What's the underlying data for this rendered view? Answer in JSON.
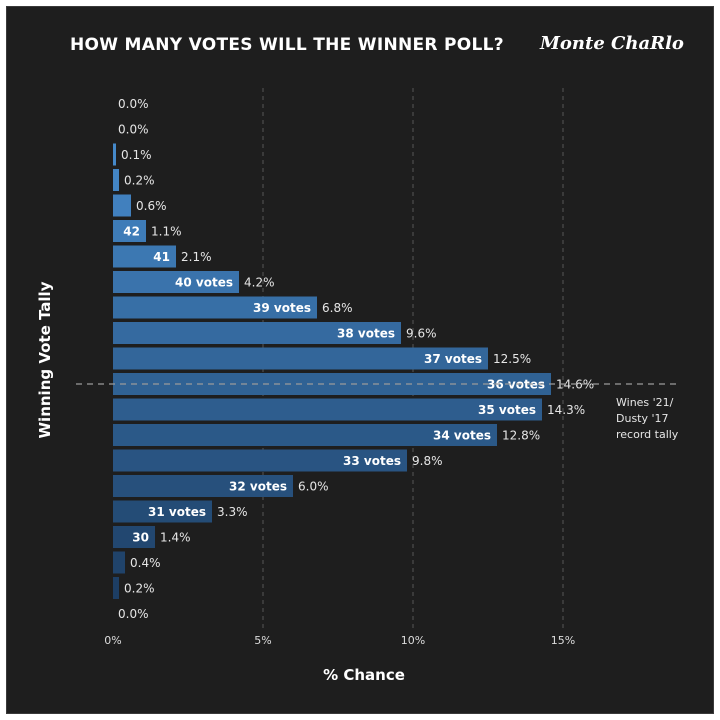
{
  "header": {
    "title": "HOW MANY VOTES WILL THE WINNER POLL?",
    "brand": "Monte ChaRlo"
  },
  "annotation": {
    "record_note": "Wines '21/ Dusty '17 record tally"
  },
  "colors": {
    "background": "#1e1e1e",
    "bar_light": "#4a92d6",
    "bar_dark": "#1b3a5e",
    "text": "#ffffff",
    "grid": "#555555"
  },
  "chart_data": {
    "type": "bar",
    "orientation": "horizontal",
    "title": "HOW MANY VOTES WILL THE WINNER POLL?",
    "xlabel": "% Chance",
    "ylabel": "Winning Vote Tally",
    "xlim": [
      0,
      15
    ],
    "xticks": [
      "0%",
      "5%",
      "10%",
      "15%"
    ],
    "grid": "vertical dashed",
    "reference_line": {
      "category": "36 votes",
      "style": "dashed",
      "label": "Wines '21/ Dusty '17 record tally"
    },
    "bars": [
      {
        "label": "",
        "value": 0.0,
        "value_label": "0.0%"
      },
      {
        "label": "",
        "value": 0.0,
        "value_label": "0.0%"
      },
      {
        "label": "",
        "value": 0.1,
        "value_label": "0.1%"
      },
      {
        "label": "",
        "value": 0.2,
        "value_label": "0.2%"
      },
      {
        "label": "",
        "value": 0.6,
        "value_label": "0.6%"
      },
      {
        "label": "42",
        "value": 1.1,
        "value_label": "1.1%"
      },
      {
        "label": "41",
        "value": 2.1,
        "value_label": "2.1%"
      },
      {
        "label": "40 votes",
        "value": 4.2,
        "value_label": "4.2%"
      },
      {
        "label": "39 votes",
        "value": 6.8,
        "value_label": "6.8%"
      },
      {
        "label": "38 votes",
        "value": 9.6,
        "value_label": "9.6%"
      },
      {
        "label": "37 votes",
        "value": 12.5,
        "value_label": "12.5%"
      },
      {
        "label": "36 votes",
        "value": 14.6,
        "value_label": "14.6%"
      },
      {
        "label": "35 votes",
        "value": 14.3,
        "value_label": "14.3%"
      },
      {
        "label": "34 votes",
        "value": 12.8,
        "value_label": "12.8%"
      },
      {
        "label": "33 votes",
        "value": 9.8,
        "value_label": "9.8%"
      },
      {
        "label": "32 votes",
        "value": 6.0,
        "value_label": "6.0%"
      },
      {
        "label": "31 votes",
        "value": 3.3,
        "value_label": "3.3%"
      },
      {
        "label": "30",
        "value": 1.4,
        "value_label": "1.4%"
      },
      {
        "label": "",
        "value": 0.4,
        "value_label": "0.4%"
      },
      {
        "label": "",
        "value": 0.2,
        "value_label": "0.2%"
      },
      {
        "label": "",
        "value": 0.0,
        "value_label": "0.0%"
      }
    ]
  }
}
